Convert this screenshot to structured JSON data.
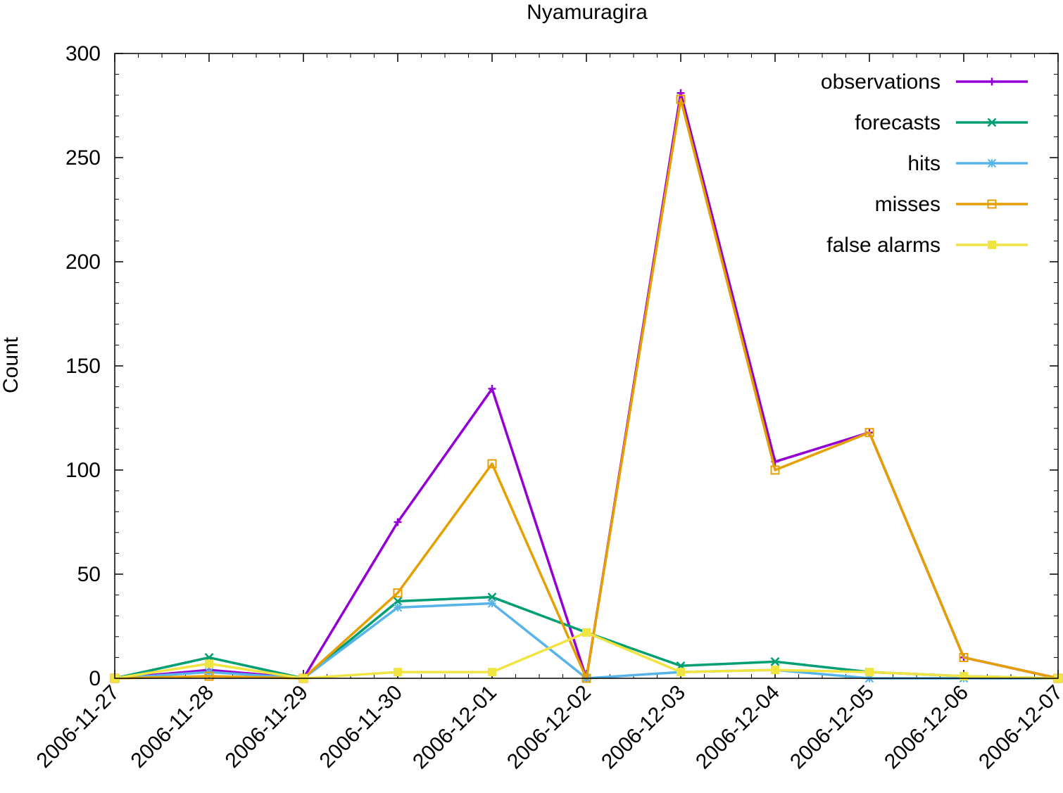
{
  "chart_data": {
    "type": "line",
    "title": "Nyamuragira",
    "xlabel": "",
    "ylabel": "Count",
    "ylim": [
      0,
      300
    ],
    "yticks": [
      0,
      50,
      100,
      150,
      200,
      250,
      300
    ],
    "grid": false,
    "legend_position": "top-right",
    "categories": [
      "2006-11-27",
      "2006-11-28",
      "2006-11-29",
      "2006-11-30",
      "2006-12-01",
      "2006-12-02",
      "2006-12-03",
      "2006-12-04",
      "2006-12-05",
      "2006-12-06",
      "2006-12-07"
    ],
    "series": [
      {
        "name": "observations",
        "color": "#9400d3",
        "marker": "plus",
        "values": [
          0,
          4,
          0,
          75,
          139,
          0,
          281,
          104,
          118,
          10,
          0
        ]
      },
      {
        "name": "forecasts",
        "color": "#009e73",
        "marker": "cross",
        "values": [
          0,
          10,
          0,
          37,
          39,
          22,
          6,
          8,
          3,
          1,
          0
        ]
      },
      {
        "name": "hits",
        "color": "#56b4e9",
        "marker": "star",
        "values": [
          0,
          3,
          0,
          34,
          36,
          0,
          3,
          4,
          0,
          0,
          0
        ]
      },
      {
        "name": "misses",
        "color": "#e69f00",
        "marker": "open-square",
        "values": [
          0,
          1,
          0,
          41,
          103,
          0,
          278,
          100,
          118,
          10,
          0
        ]
      },
      {
        "name": "false alarms",
        "color": "#f0e442",
        "marker": "filled-square",
        "values": [
          0,
          7,
          0,
          3,
          3,
          22,
          3,
          4,
          3,
          1,
          0
        ]
      }
    ]
  }
}
